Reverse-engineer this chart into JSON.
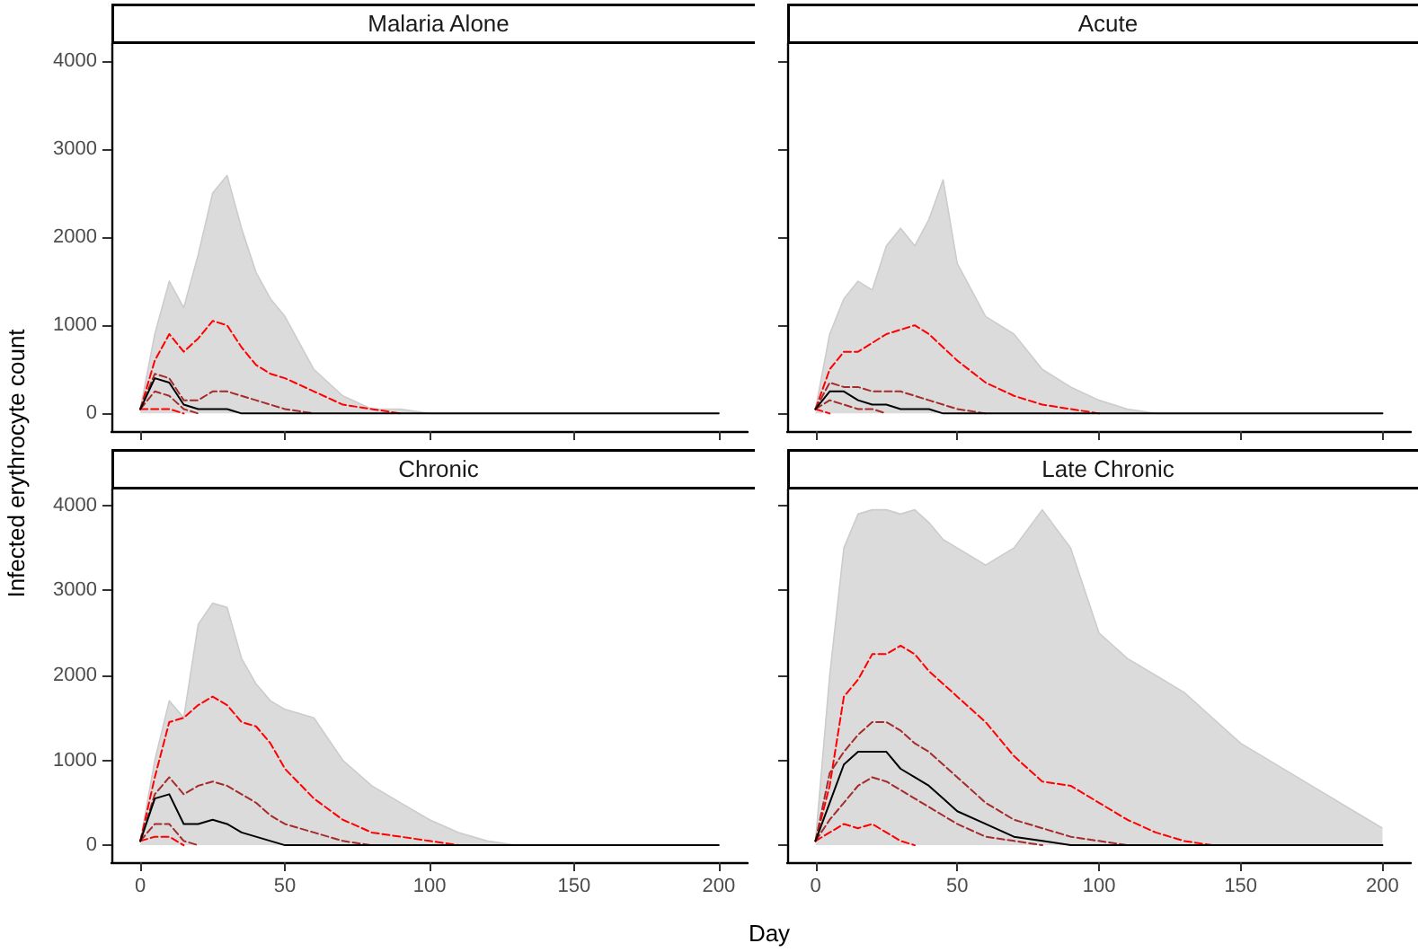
{
  "chart_data": [
    {
      "type": "line",
      "title": "Malaria Alone",
      "ylabel": "Infected erythrocyte count",
      "marker": "none",
      "tick_labels": "y",
      "grid": false,
      "x": [
        0,
        5,
        10,
        15,
        20,
        25,
        30,
        35,
        40,
        45,
        50,
        60,
        70,
        80,
        90,
        100,
        110,
        120,
        130,
        140,
        150,
        175,
        200
      ],
      "xlim": [
        -10,
        210
      ],
      "xticks": [
        0,
        50,
        100,
        150,
        200
      ],
      "ylim": [
        -200,
        4200
      ],
      "yticks": [
        0,
        1000,
        2000,
        3000,
        4000
      ],
      "series": [
        {
          "type": "area",
          "color": "#cccccc",
          "values": [
            50,
            900,
            1500,
            1200,
            1800,
            2500,
            2700,
            2100,
            1600,
            1300,
            1100,
            500,
            200,
            50,
            50,
            0,
            0,
            0,
            0,
            0,
            0,
            0,
            0
          ]
        },
        {
          "color": "#ff0000",
          "line_style": "dashed",
          "values": [
            50,
            600,
            900,
            700,
            850,
            1050,
            1000,
            750,
            550,
            450,
            400,
            250,
            100,
            50,
            0,
            null,
            null,
            null,
            null,
            null,
            null,
            null,
            null
          ]
        },
        {
          "color": "#a52a2a",
          "line_style": "dashed",
          "values": [
            50,
            450,
            400,
            150,
            150,
            250,
            250,
            200,
            150,
            100,
            50,
            0,
            null,
            null,
            null,
            null,
            null,
            null,
            null,
            null,
            null,
            null,
            null
          ]
        },
        {
          "color": "#000000",
          "line_style": "solid",
          "values": [
            50,
            400,
            350,
            100,
            50,
            50,
            50,
            0,
            0,
            0,
            0,
            0,
            0,
            0,
            0,
            0,
            0,
            0,
            0,
            0,
            0,
            0,
            0
          ]
        },
        {
          "color": "#a52a2a",
          "line_style": "dashed",
          "values": [
            50,
            250,
            200,
            50,
            0,
            null,
            null,
            null,
            null,
            null,
            null,
            null,
            null,
            null,
            null,
            null,
            null,
            null,
            null,
            null,
            null,
            null,
            null
          ]
        },
        {
          "color": "#ff0000",
          "line_style": "dashed",
          "values": [
            50,
            50,
            50,
            0,
            null,
            null,
            null,
            null,
            null,
            null,
            null,
            null,
            null,
            null,
            null,
            null,
            null,
            null,
            null,
            null,
            null,
            null,
            null
          ]
        }
      ]
    },
    {
      "type": "line",
      "title": "Acute",
      "marker": "none",
      "tick_labels": false,
      "grid": false,
      "x": [
        0,
        5,
        10,
        15,
        20,
        25,
        30,
        35,
        40,
        45,
        50,
        60,
        70,
        80,
        90,
        100,
        110,
        120,
        130,
        140,
        150,
        175,
        200
      ],
      "xlim": [
        -10,
        210
      ],
      "xticks": [
        0,
        50,
        100,
        150,
        200
      ],
      "ylim": [
        -200,
        4200
      ],
      "yticks": [
        0,
        1000,
        2000,
        3000,
        4000
      ],
      "series": [
        {
          "type": "area",
          "color": "#cccccc",
          "values": [
            50,
            900,
            1300,
            1500,
            1400,
            1900,
            2100,
            1900,
            2200,
            2650,
            1700,
            1100,
            900,
            500,
            300,
            150,
            50,
            0,
            0,
            0,
            0,
            0,
            0
          ]
        },
        {
          "color": "#ff0000",
          "line_style": "dashed",
          "values": [
            50,
            500,
            700,
            700,
            800,
            900,
            950,
            1000,
            900,
            750,
            600,
            350,
            200,
            100,
            50,
            0,
            null,
            null,
            null,
            null,
            null,
            null,
            null
          ]
        },
        {
          "color": "#a52a2a",
          "line_style": "dashed",
          "values": [
            50,
            350,
            300,
            300,
            250,
            250,
            250,
            200,
            150,
            100,
            50,
            0,
            null,
            null,
            null,
            null,
            null,
            null,
            null,
            null,
            null,
            null,
            null
          ]
        },
        {
          "color": "#000000",
          "line_style": "solid",
          "values": [
            50,
            250,
            250,
            150,
            100,
            100,
            50,
            50,
            50,
            0,
            0,
            0,
            0,
            0,
            0,
            0,
            0,
            0,
            0,
            0,
            0,
            0,
            0
          ]
        },
        {
          "color": "#a52a2a",
          "line_style": "dashed",
          "values": [
            50,
            150,
            100,
            50,
            50,
            0,
            null,
            null,
            null,
            null,
            null,
            null,
            null,
            null,
            null,
            null,
            null,
            null,
            null,
            null,
            null,
            null,
            null
          ]
        },
        {
          "color": "#ff0000",
          "line_style": "dashed",
          "values": [
            50,
            0,
            null,
            null,
            null,
            null,
            null,
            null,
            null,
            null,
            null,
            null,
            null,
            null,
            null,
            null,
            null,
            null,
            null,
            null,
            null,
            null,
            null
          ]
        }
      ]
    },
    {
      "type": "line",
      "title": "Chronic",
      "xlabel": "Day",
      "marker": "none",
      "grid": false,
      "x": [
        0,
        5,
        10,
        15,
        20,
        25,
        30,
        35,
        40,
        45,
        50,
        60,
        70,
        80,
        90,
        100,
        110,
        120,
        130,
        140,
        150,
        175,
        200
      ],
      "xlim": [
        -10,
        210
      ],
      "xticks": [
        0,
        50,
        100,
        150,
        200
      ],
      "ylim": [
        -200,
        4200
      ],
      "yticks": [
        0,
        1000,
        2000,
        3000,
        4000
      ],
      "series": [
        {
          "type": "area",
          "color": "#cccccc",
          "values": [
            50,
            1000,
            1700,
            1500,
            2600,
            2850,
            2800,
            2200,
            1900,
            1700,
            1600,
            1500,
            1000,
            700,
            500,
            300,
            150,
            50,
            0,
            0,
            0,
            0,
            0
          ]
        },
        {
          "color": "#ff0000",
          "line_style": "dashed",
          "values": [
            50,
            800,
            1450,
            1500,
            1650,
            1750,
            1650,
            1450,
            1400,
            1200,
            900,
            550,
            300,
            150,
            100,
            50,
            0,
            null,
            null,
            null,
            null,
            null,
            null
          ]
        },
        {
          "color": "#a52a2a",
          "line_style": "dashed",
          "values": [
            50,
            600,
            800,
            600,
            700,
            750,
            700,
            600,
            500,
            350,
            250,
            150,
            50,
            0,
            null,
            null,
            null,
            null,
            null,
            null,
            null,
            null,
            null
          ]
        },
        {
          "color": "#000000",
          "line_style": "solid",
          "values": [
            50,
            550,
            600,
            250,
            250,
            300,
            250,
            150,
            100,
            50,
            0,
            0,
            0,
            0,
            0,
            0,
            0,
            0,
            0,
            0,
            0,
            0,
            0
          ]
        },
        {
          "color": "#a52a2a",
          "line_style": "dashed",
          "values": [
            50,
            250,
            250,
            50,
            0,
            null,
            null,
            null,
            null,
            null,
            null,
            null,
            null,
            null,
            null,
            null,
            null,
            null,
            null,
            null,
            null,
            null,
            null
          ]
        },
        {
          "color": "#ff0000",
          "line_style": "dashed",
          "values": [
            50,
            100,
            100,
            0,
            null,
            null,
            null,
            null,
            null,
            null,
            null,
            null,
            null,
            null,
            null,
            null,
            null,
            null,
            null,
            null,
            null,
            null,
            null
          ]
        }
      ]
    },
    {
      "type": "line",
      "title": "Late Chronic",
      "marker": "none",
      "tick_labels": "x",
      "grid": false,
      "x": [
        0,
        5,
        10,
        15,
        20,
        25,
        30,
        35,
        40,
        45,
        50,
        60,
        70,
        80,
        90,
        100,
        110,
        120,
        130,
        140,
        150,
        175,
        200
      ],
      "xlim": [
        -10,
        210
      ],
      "xticks": [
        0,
        50,
        100,
        150,
        200
      ],
      "ylim": [
        -200,
        4200
      ],
      "yticks": [
        0,
        1000,
        2000,
        3000,
        4000
      ],
      "series": [
        {
          "type": "area",
          "color": "#cccccc",
          "values": [
            50,
            2000,
            3500,
            3900,
            3950,
            3950,
            3900,
            3950,
            3800,
            3600,
            3500,
            3300,
            3500,
            3950,
            3500,
            2500,
            2200,
            2000,
            1800,
            1500,
            1200,
            700,
            200
          ]
        },
        {
          "color": "#ff0000",
          "line_style": "dashed",
          "values": [
            50,
            700,
            1750,
            1950,
            2250,
            2250,
            2350,
            2250,
            2050,
            1900,
            1750,
            1450,
            1050,
            750,
            700,
            500,
            300,
            150,
            50,
            0,
            null,
            null,
            null
          ]
        },
        {
          "color": "#a52a2a",
          "line_style": "dashed",
          "values": [
            50,
            850,
            1100,
            1300,
            1450,
            1450,
            1350,
            1200,
            1100,
            950,
            800,
            500,
            300,
            200,
            100,
            50,
            0,
            null,
            null,
            null,
            null,
            null,
            null
          ]
        },
        {
          "color": "#000000",
          "line_style": "solid",
          "values": [
            50,
            500,
            950,
            1100,
            1100,
            1100,
            900,
            800,
            700,
            550,
            400,
            250,
            100,
            50,
            0,
            0,
            0,
            0,
            0,
            0,
            0,
            0,
            0
          ]
        },
        {
          "color": "#a52a2a",
          "line_style": "dashed",
          "values": [
            50,
            300,
            500,
            700,
            800,
            750,
            650,
            550,
            450,
            350,
            250,
            100,
            50,
            0,
            null,
            null,
            null,
            null,
            null,
            null,
            null,
            null,
            null
          ]
        },
        {
          "color": "#ff0000",
          "line_style": "dashed",
          "values": [
            50,
            150,
            250,
            200,
            250,
            150,
            50,
            0,
            null,
            null,
            null,
            null,
            null,
            null,
            null,
            null,
            null,
            null,
            null,
            null,
            null,
            null,
            null
          ]
        }
      ]
    }
  ]
}
